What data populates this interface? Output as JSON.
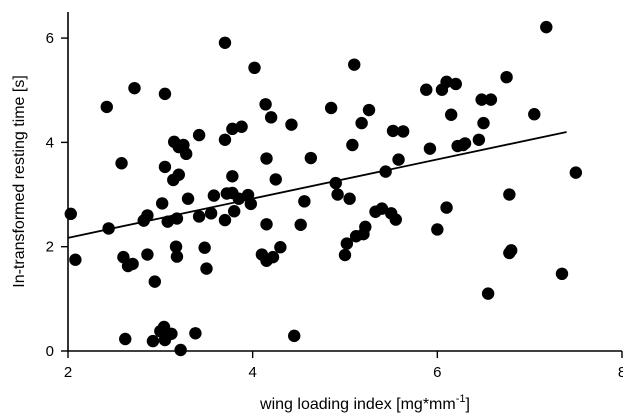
{
  "chart_data": {
    "type": "scatter",
    "title": "",
    "xlabel": "wing loading  index [mg*mm",
    "xlabel_superscript": "-1",
    "xlabel_suffix": "]",
    "ylabel": "In-transformed resting time [s]",
    "xlim": [
      2,
      8
    ],
    "ylim": [
      0,
      6.5
    ],
    "x_ticks": [
      2,
      4,
      6,
      8
    ],
    "y_ticks": [
      0,
      2,
      4,
      6
    ],
    "grid": false,
    "legend": "none",
    "trendline": {
      "x": [
        2.0,
        7.4
      ],
      "y": [
        2.17,
        4.2
      ]
    },
    "points": [
      [
        2.03,
        2.63
      ],
      [
        2.08,
        1.75
      ],
      [
        2.42,
        4.68
      ],
      [
        2.44,
        2.35
      ],
      [
        2.58,
        3.6
      ],
      [
        2.6,
        1.8
      ],
      [
        2.62,
        0.23
      ],
      [
        2.65,
        1.63
      ],
      [
        2.7,
        1.67
      ],
      [
        2.72,
        5.04
      ],
      [
        2.82,
        2.5
      ],
      [
        2.86,
        1.85
      ],
      [
        2.86,
        2.6
      ],
      [
        2.92,
        0.19
      ],
      [
        2.94,
        1.33
      ],
      [
        3.0,
        0.38
      ],
      [
        3.02,
        2.83
      ],
      [
        3.04,
        0.46
      ],
      [
        3.05,
        4.93
      ],
      [
        3.05,
        3.53
      ],
      [
        3.05,
        0.21
      ],
      [
        3.08,
        2.48
      ],
      [
        3.12,
        0.33
      ],
      [
        3.14,
        3.28
      ],
      [
        3.15,
        4.01
      ],
      [
        3.17,
        2.0
      ],
      [
        3.18,
        1.81
      ],
      [
        3.18,
        2.54
      ],
      [
        3.2,
        3.38
      ],
      [
        3.2,
        3.91
      ],
      [
        3.22,
        0.02
      ],
      [
        3.25,
        3.95
      ],
      [
        3.28,
        3.78
      ],
      [
        3.3,
        2.92
      ],
      [
        3.38,
        0.34
      ],
      [
        3.42,
        4.14
      ],
      [
        3.42,
        2.58
      ],
      [
        3.48,
        1.98
      ],
      [
        3.5,
        1.58
      ],
      [
        3.55,
        2.64
      ],
      [
        3.58,
        2.98
      ],
      [
        3.7,
        5.91
      ],
      [
        3.7,
        4.05
      ],
      [
        3.7,
        2.51
      ],
      [
        3.72,
        3.02
      ],
      [
        3.78,
        3.03
      ],
      [
        3.78,
        3.35
      ],
      [
        3.78,
        4.26
      ],
      [
        3.8,
        2.68
      ],
      [
        3.85,
        2.92
      ],
      [
        3.88,
        4.3
      ],
      [
        3.95,
        2.99
      ],
      [
        3.98,
        2.82
      ],
      [
        4.02,
        5.43
      ],
      [
        4.1,
        1.85
      ],
      [
        4.14,
        4.73
      ],
      [
        4.15,
        3.69
      ],
      [
        4.15,
        2.43
      ],
      [
        4.15,
        1.73
      ],
      [
        4.2,
        4.48
      ],
      [
        4.22,
        1.8
      ],
      [
        4.25,
        3.29
      ],
      [
        4.3,
        1.99
      ],
      [
        4.42,
        4.34
      ],
      [
        4.45,
        0.29
      ],
      [
        4.52,
        2.42
      ],
      [
        4.56,
        2.87
      ],
      [
        4.63,
        3.7
      ],
      [
        4.85,
        4.66
      ],
      [
        4.9,
        3.22
      ],
      [
        4.92,
        3.0
      ],
      [
        5.0,
        1.84
      ],
      [
        5.02,
        2.06
      ],
      [
        5.05,
        2.92
      ],
      [
        5.08,
        3.95
      ],
      [
        5.1,
        5.49
      ],
      [
        5.12,
        2.2
      ],
      [
        5.18,
        4.37
      ],
      [
        5.2,
        2.24
      ],
      [
        5.22,
        2.38
      ],
      [
        5.26,
        4.62
      ],
      [
        5.33,
        2.67
      ],
      [
        5.4,
        2.73
      ],
      [
        5.44,
        3.44
      ],
      [
        5.5,
        2.64
      ],
      [
        5.52,
        4.22
      ],
      [
        5.55,
        2.52
      ],
      [
        5.58,
        3.67
      ],
      [
        5.63,
        4.21
      ],
      [
        5.88,
        5.01
      ],
      [
        5.92,
        3.88
      ],
      [
        6.0,
        2.33
      ],
      [
        6.05,
        5.01
      ],
      [
        6.1,
        2.75
      ],
      [
        6.1,
        5.16
      ],
      [
        6.15,
        4.53
      ],
      [
        6.2,
        5.12
      ],
      [
        6.22,
        3.93
      ],
      [
        6.28,
        3.95
      ],
      [
        6.3,
        3.98
      ],
      [
        6.45,
        4.05
      ],
      [
        6.48,
        4.82
      ],
      [
        6.5,
        4.37
      ],
      [
        6.55,
        1.1
      ],
      [
        6.58,
        4.82
      ],
      [
        6.75,
        5.25
      ],
      [
        6.78,
        3.0
      ],
      [
        6.78,
        1.88
      ],
      [
        6.8,
        1.93
      ],
      [
        7.05,
        4.54
      ],
      [
        7.18,
        6.21
      ],
      [
        7.35,
        1.48
      ],
      [
        7.5,
        3.42
      ]
    ]
  }
}
